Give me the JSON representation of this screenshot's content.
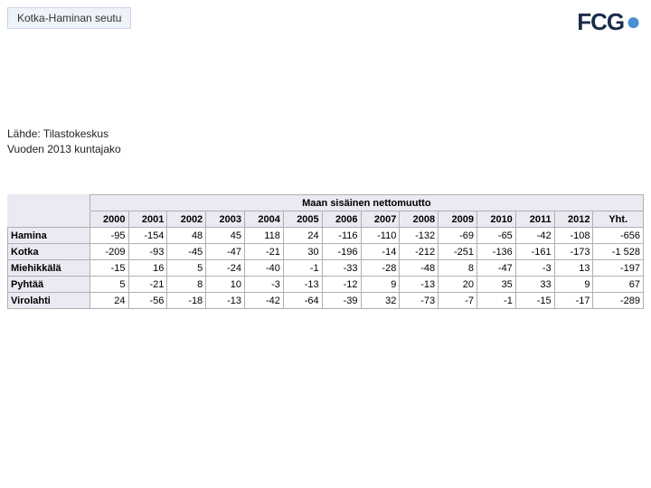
{
  "header": {
    "region": "Kotka-Haminan seutu"
  },
  "logo": {
    "text": "FCG",
    "dot": "●"
  },
  "source": {
    "line1": "Lähde: Tilastokeskus",
    "line2": "Vuoden 2013 kuntajako"
  },
  "table": {
    "supertitle": "Maan sisäinen nettomuutto",
    "years": [
      "2000",
      "2001",
      "2002",
      "2003",
      "2004",
      "2005",
      "2006",
      "2007",
      "2008",
      "2009",
      "2010",
      "2011",
      "2012"
    ],
    "total_label": "Yht.",
    "rows": [
      {
        "label": "Hamina",
        "values": [
          "-95",
          "-154",
          "48",
          "45",
          "118",
          "24",
          "-116",
          "-110",
          "-132",
          "-69",
          "-65",
          "-42",
          "-108"
        ],
        "total": "-656"
      },
      {
        "label": "Kotka",
        "values": [
          "-209",
          "-93",
          "-45",
          "-47",
          "-21",
          "30",
          "-196",
          "-14",
          "-212",
          "-251",
          "-136",
          "-161",
          "-173"
        ],
        "total": "-1 528"
      },
      {
        "label": "Miehikkälä",
        "values": [
          "-15",
          "16",
          "5",
          "-24",
          "-40",
          "-1",
          "-33",
          "-28",
          "-48",
          "8",
          "-47",
          "-3",
          "13"
        ],
        "total": "-197"
      },
      {
        "label": "Pyhtää",
        "values": [
          "5",
          "-21",
          "8",
          "10",
          "-3",
          "-13",
          "-12",
          "9",
          "-13",
          "20",
          "35",
          "33",
          "9"
        ],
        "total": "67"
      },
      {
        "label": "Virolahti",
        "values": [
          "24",
          "-56",
          "-18",
          "-13",
          "-42",
          "-64",
          "-39",
          "32",
          "-73",
          "-7",
          "-1",
          "-15",
          "-17"
        ],
        "total": "-289"
      }
    ],
    "colors": {
      "header_bg": "#eaeaf2",
      "cell_bg": "#ffffff",
      "border": "#b0b0b0",
      "text": "#000000"
    },
    "font_size": 11
  }
}
